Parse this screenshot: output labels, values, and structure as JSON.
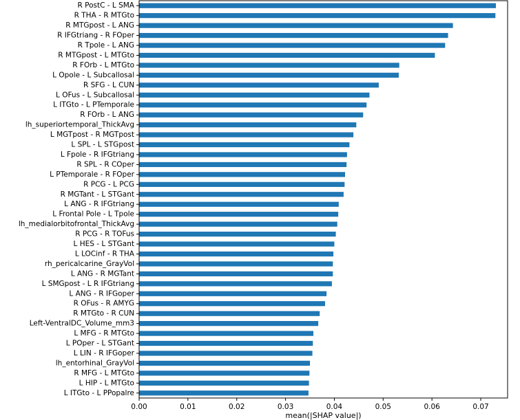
{
  "chart_data": {
    "type": "bar",
    "orientation": "horizontal",
    "xlabel": "mean(|SHAP value|)",
    "xlim": [
      0,
      0.0755
    ],
    "xticks": [
      "0.00",
      "0.01",
      "0.02",
      "0.03",
      "0.04",
      "0.05",
      "0.06",
      "0.07"
    ],
    "bar_color": "#1f77b4",
    "grid": false,
    "categories": [
      "R PostC - L  SMA",
      "R THA - R MTGto",
      "R MTGpost - L ANG",
      "R IFGtriang - R FOper",
      "R Tpole - L ANG",
      "R MTGpost - L MTGto",
      "R FOrb - L MTGto",
      "L Opole - L Subcallosal",
      "R SFG - L CUN",
      "L OFus - L Subcallosal",
      "L ITGto - L PTemporale",
      "R FOrb - L ANG",
      "lh_superiortemporal_ThickAvg",
      "L MGTpost - R MGTpost",
      "L SPL - L STGpost",
      "L Fpole - R IFGtriang",
      "R SPL - R COper",
      "L PTemporale - R FOper",
      "R PCG - L PCG",
      "R MGTant - L STGant",
      "L ANG - R IFGtriang",
      "L Frontal Pole - L Tpole",
      "lh_medialorbitofrontal_ThickAvg",
      "R PCG - R TOFus",
      "L HES - L STGant",
      "L LOCinf - R THA",
      "rh_pericalcarine_GrayVol",
      "L ANG - R MGTant",
      "L SMGpost - L R IFGtriang",
      "L ANG - R IFGoper",
      "R OFus - R AMYG",
      "R MTGto - R CUN",
      "Left-VentralDC_Volume_mm3",
      "L MFG - R MTGto",
      "L POper - L STGant",
      "L LIN - R IFGoper",
      "lh_entorhinal_GrayVol",
      "R MFG - L MTGto",
      "L HIP - L MTGto",
      "L ITGto - L PPopalre"
    ],
    "values": [
      0.0731,
      0.073,
      0.0643,
      0.0633,
      0.0627,
      0.0606,
      0.0533,
      0.0532,
      0.0491,
      0.0472,
      0.0466,
      0.0459,
      0.0445,
      0.0439,
      0.0431,
      0.0426,
      0.0425,
      0.0422,
      0.0421,
      0.0419,
      0.0409,
      0.0408,
      0.0406,
      0.0403,
      0.04,
      0.0398,
      0.0397,
      0.0397,
      0.0395,
      0.0384,
      0.0381,
      0.037,
      0.0367,
      0.0357,
      0.0356,
      0.0355,
      0.035,
      0.0349,
      0.0348,
      0.0347
    ]
  }
}
